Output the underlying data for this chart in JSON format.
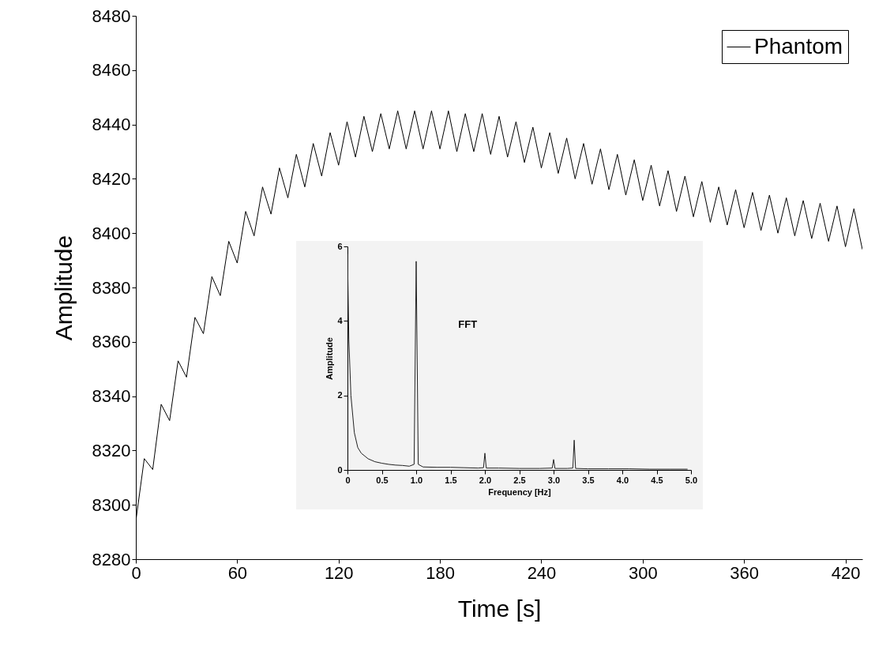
{
  "chart_data": [
    {
      "type": "line",
      "xlabel": "Time [s]",
      "ylabel": "Amplitude",
      "legend": "top right",
      "line_style": "solid",
      "xlim": [
        0,
        430
      ],
      "ylim": [
        8280,
        8480
      ],
      "xticks": [
        0,
        60,
        120,
        180,
        240,
        300,
        360,
        420
      ],
      "yticks": [
        8280,
        8300,
        8320,
        8340,
        8360,
        8380,
        8400,
        8420,
        8440,
        8460,
        8480
      ],
      "x": [
        0,
        5,
        10,
        15,
        20,
        25,
        30,
        35,
        40,
        45,
        50,
        55,
        60,
        65,
        70,
        75,
        80,
        85,
        90,
        95,
        100,
        105,
        110,
        115,
        120,
        125,
        130,
        135,
        140,
        145,
        150,
        155,
        160,
        165,
        170,
        175,
        180,
        185,
        190,
        195,
        200,
        205,
        210,
        215,
        220,
        225,
        230,
        235,
        240,
        245,
        250,
        255,
        260,
        265,
        270,
        275,
        280,
        285,
        290,
        295,
        300,
        305,
        310,
        315,
        320,
        325,
        330,
        335,
        340,
        345,
        350,
        355,
        360,
        365,
        370,
        375,
        380,
        385,
        390,
        395,
        400,
        405,
        410,
        415,
        420,
        425,
        430
      ],
      "series": [
        {
          "name": "Phantom",
          "color": "#000000",
          "values": [
            8294,
            8317,
            8313,
            8337,
            8331,
            8353,
            8347,
            8369,
            8363,
            8384,
            8377,
            8397,
            8389,
            8408,
            8399,
            8417,
            8407,
            8424,
            8413,
            8429,
            8417,
            8433,
            8421,
            8437,
            8425,
            8441,
            8428,
            8443,
            8430,
            8444,
            8431,
            8445,
            8431,
            8445,
            8431,
            8445,
            8431,
            8445,
            8430,
            8444,
            8430,
            8444,
            8429,
            8443,
            8428,
            8441,
            8426,
            8439,
            8424,
            8437,
            8422,
            8435,
            8420,
            8433,
            8418,
            8431,
            8416,
            8429,
            8414,
            8427,
            8412,
            8425,
            8410,
            8423,
            8408,
            8421,
            8406,
            8419,
            8404,
            8417,
            8403,
            8416,
            8402,
            8415,
            8401,
            8414,
            8400,
            8413,
            8399,
            8412,
            8398,
            8411,
            8397,
            8410,
            8395,
            8409,
            8394
          ]
        }
      ]
    },
    {
      "type": "line",
      "xlabel": "Frequency [Hz]",
      "ylabel": "Amplitude",
      "annotations": [
        "FFT"
      ],
      "xlim": [
        0,
        5
      ],
      "ylim": [
        0,
        6
      ],
      "xticks": [
        0,
        0.5,
        {
          "value": 1,
          "label": "1.0"
        },
        1.5,
        {
          "value": 2,
          "label": "2.0"
        },
        2.5,
        {
          "value": 3,
          "label": "3.0"
        },
        3.5,
        {
          "value": 4,
          "label": "4.0"
        },
        4.5,
        {
          "value": 5,
          "label": "5.0"
        }
      ],
      "yticks": [
        0,
        2,
        4,
        6
      ],
      "x": [
        0,
        0.02,
        0.05,
        0.1,
        0.15,
        0.2,
        0.3,
        0.4,
        0.5,
        0.6,
        0.7,
        0.8,
        0.9,
        0.97,
        1.0,
        1.03,
        1.1,
        1.3,
        1.5,
        1.7,
        1.9,
        1.98,
        2.0,
        2.02,
        2.2,
        2.5,
        2.8,
        2.98,
        3.0,
        3.02,
        3.2,
        3.28,
        3.3,
        3.32,
        3.5,
        3.8,
        4.1,
        4.4,
        4.7,
        4.95
      ],
      "series": [
        {
          "color": "#222222",
          "values": [
            5.8,
            3.5,
            2.0,
            1.0,
            0.6,
            0.45,
            0.3,
            0.22,
            0.18,
            0.15,
            0.13,
            0.12,
            0.1,
            0.15,
            5.6,
            0.15,
            0.08,
            0.07,
            0.07,
            0.06,
            0.05,
            0.06,
            0.45,
            0.05,
            0.05,
            0.04,
            0.04,
            0.05,
            0.28,
            0.04,
            0.04,
            0.05,
            0.8,
            0.04,
            0.03,
            0.03,
            0.03,
            0.02,
            0.02,
            0.02
          ]
        }
      ]
    }
  ]
}
